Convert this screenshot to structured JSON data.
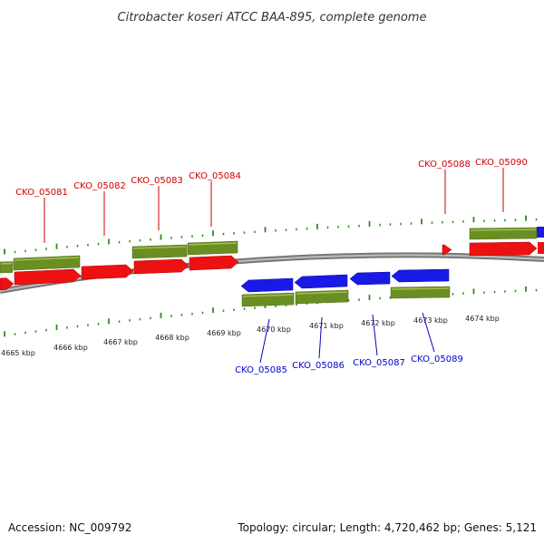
{
  "title": "Citrobacter koseri ATCC BAA-895, complete genome",
  "footer": {
    "accession": "Accession: NC_009792",
    "summary": "Topology: circular; Length: 4,720,462 bp; Genes: 5,121"
  },
  "colors": {
    "forward_gene": "#ee1111",
    "reverse_gene": "#1a1ae6",
    "cds": "#6b8e23",
    "backbone": "#8a8a8a",
    "tick": "#2e8b1e",
    "forward_label": "#cc0000",
    "reverse_label": "#0000cc"
  },
  "scale_labels": [
    "4665 kbp",
    "4666 kbp",
    "4667 kbp",
    "4668 kbp",
    "4669 kbp",
    "4670 kbp",
    "4671 kbp",
    "4672 kbp",
    "4673 kbp",
    "4674 kbp"
  ],
  "forward_labels": [
    "CKO_05081",
    "CKO_05082",
    "CKO_05083",
    "CKO_05084",
    "CKO_05088",
    "CKO_05090"
  ],
  "reverse_labels": [
    "CKO_05085",
    "CKO_05086",
    "CKO_05087",
    "CKO_05089"
  ]
}
